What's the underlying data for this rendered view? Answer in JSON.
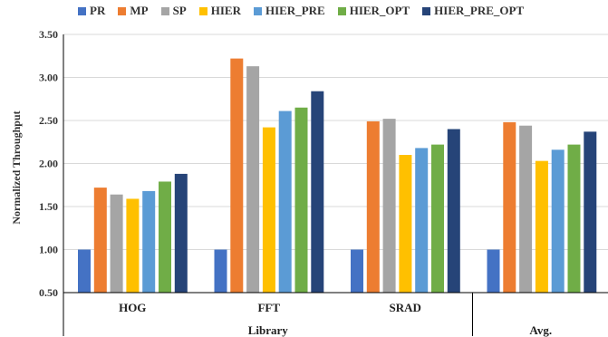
{
  "chart_data": {
    "type": "bar",
    "ylabel": "Normalized Throughput",
    "ylim": [
      0.5,
      3.5
    ],
    "yticks": [
      "0.50",
      "1.00",
      "1.50",
      "2.00",
      "2.50",
      "3.00",
      "3.50"
    ],
    "grid": true,
    "legend_position": "top",
    "categories": [
      "HOG",
      "FFT",
      "SRAD",
      ""
    ],
    "groups": [
      {
        "label": "Library",
        "categories": [
          "HOG",
          "FFT",
          "SRAD"
        ]
      },
      {
        "label": "Avg.",
        "categories": [
          ""
        ]
      }
    ],
    "series": [
      {
        "name": "PR",
        "color": "#4472C4",
        "values": [
          1.0,
          1.0,
          1.0,
          1.0
        ]
      },
      {
        "name": "MP",
        "color": "#ED7D31",
        "values": [
          1.72,
          3.22,
          2.49,
          2.48
        ]
      },
      {
        "name": "SP",
        "color": "#A5A5A5",
        "values": [
          1.64,
          3.13,
          2.52,
          2.44
        ]
      },
      {
        "name": "HIER",
        "color": "#FFC000",
        "values": [
          1.59,
          2.42,
          2.1,
          2.03
        ]
      },
      {
        "name": "HIER_PRE",
        "color": "#5B9BD5",
        "values": [
          1.68,
          2.61,
          2.18,
          2.16
        ]
      },
      {
        "name": "HIER_OPT",
        "color": "#70AD47",
        "values": [
          1.79,
          2.65,
          2.22,
          2.22
        ]
      },
      {
        "name": "HIER_PRE_OPT",
        "color": "#264478",
        "values": [
          1.88,
          2.84,
          2.4,
          2.37
        ]
      }
    ]
  }
}
